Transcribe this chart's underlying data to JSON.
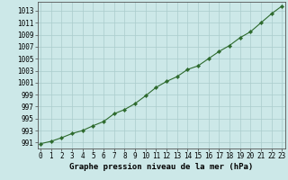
{
  "x": [
    0,
    1,
    2,
    3,
    4,
    5,
    6,
    7,
    8,
    9,
    10,
    11,
    12,
    13,
    14,
    15,
    16,
    17,
    18,
    19,
    20,
    21,
    22,
    23
  ],
  "y": [
    990.8,
    991.2,
    991.8,
    992.5,
    993.0,
    993.8,
    994.5,
    995.8,
    996.5,
    997.5,
    998.8,
    1000.2,
    1001.2,
    1002.0,
    1003.2,
    1003.8,
    1005.0,
    1006.2,
    1007.2,
    1008.5,
    1009.5,
    1011.0,
    1012.5,
    1013.8
  ],
  "line_color": "#2d6a2d",
  "marker": "D",
  "marker_size": 2.2,
  "line_width": 0.8,
  "bg_color": "#cce8e8",
  "grid_color": "#aacccc",
  "title": "Graphe pression niveau de la mer (hPa)",
  "xlim": [
    -0.3,
    23.3
  ],
  "ylim": [
    990.0,
    1014.5
  ],
  "yticks": [
    991,
    993,
    995,
    997,
    999,
    1001,
    1003,
    1005,
    1007,
    1009,
    1011,
    1013
  ],
  "xticks": [
    0,
    1,
    2,
    3,
    4,
    5,
    6,
    7,
    8,
    9,
    10,
    11,
    12,
    13,
    14,
    15,
    16,
    17,
    18,
    19,
    20,
    21,
    22,
    23
  ],
  "tick_fontsize": 5.5,
  "title_fontsize": 6.5
}
